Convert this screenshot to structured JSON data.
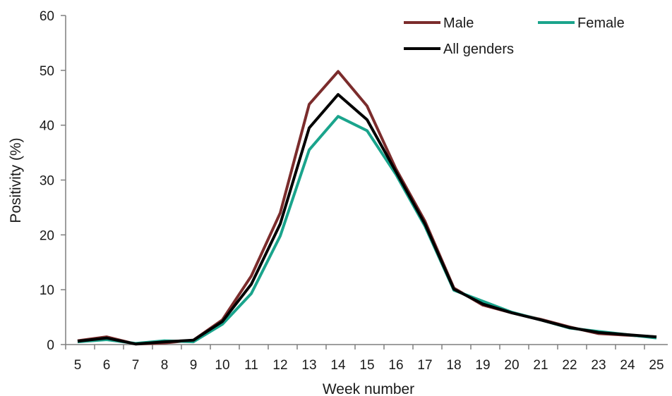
{
  "chart_data": {
    "type": "line",
    "title": "",
    "xlabel": "Week number",
    "ylabel": "Positivity (%)",
    "ylim": [
      0,
      60
    ],
    "yticks": [
      0,
      10,
      20,
      30,
      40,
      50,
      60
    ],
    "categories": [
      "5",
      "6",
      "7",
      "8",
      "9",
      "10",
      "11",
      "12",
      "13",
      "14",
      "15",
      "16",
      "17",
      "18",
      "19",
      "20",
      "21",
      "22",
      "23",
      "24",
      "25"
    ],
    "grid": false,
    "legend_position": "top-right",
    "series": [
      {
        "name": "Male",
        "color": "#7B2C2C",
        "values": [
          0.7,
          1.4,
          0.1,
          0.3,
          0.8,
          4.5,
          12.5,
          24.0,
          43.8,
          49.8,
          43.5,
          32.0,
          22.5,
          10.3,
          7.2,
          5.8,
          4.6,
          3.2,
          2.0,
          1.7,
          1.4
        ]
      },
      {
        "name": "Female",
        "color": "#1AA48C",
        "values": [
          0.5,
          0.9,
          0.2,
          0.7,
          0.5,
          3.7,
          9.3,
          19.8,
          35.5,
          41.6,
          39.0,
          31.0,
          21.6,
          9.9,
          7.9,
          5.9,
          4.5,
          3.0,
          2.4,
          1.8,
          1.2
        ]
      },
      {
        "name": "All genders",
        "color": "#000000",
        "values": [
          0.6,
          1.2,
          0.1,
          0.5,
          0.8,
          4.2,
          11.0,
          22.0,
          39.5,
          45.6,
          41.0,
          31.5,
          22.0,
          10.1,
          7.4,
          5.8,
          4.5,
          3.1,
          2.2,
          1.8,
          1.4
        ]
      }
    ]
  }
}
